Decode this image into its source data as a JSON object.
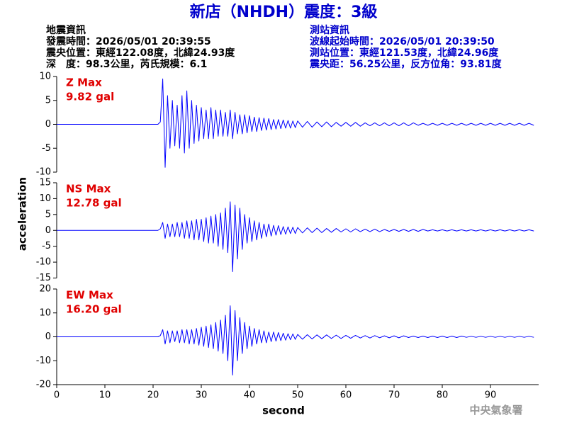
{
  "header": {
    "title": "新店（NHDH）震度：3級",
    "left": [
      "地震資訊",
      "發震時間：2026/05/01 20:39:55",
      "震央位置：東經122.08度，北緯24.93度",
      "深　度：98.3公里，芮氏規模：6.1"
    ],
    "right": [
      "測站資訊",
      "波線起始時間：2026/05/01 20:39:50",
      "測站位置：東經121.53度，北緯24.96度",
      "震央距：56.25公里，反方位角：93.81度"
    ]
  },
  "footer": "中央氣象署",
  "chart_data": [
    {
      "type": "line",
      "annotation": [
        "Z Max",
        "9.82 gal"
      ],
      "xlim": [
        0,
        100
      ],
      "ylim": [
        -10,
        10
      ],
      "yticks": [
        -10,
        -5,
        0,
        5,
        10
      ],
      "x": [
        0,
        21,
        21.5,
        22,
        22.5,
        23,
        23.5,
        24,
        24.5,
        25,
        25.5,
        26,
        26.5,
        27,
        27.5,
        28,
        28.5,
        29,
        29.5,
        30,
        30.5,
        31,
        31.5,
        32,
        32.5,
        33,
        33.5,
        34,
        34.5,
        35,
        35.5,
        36,
        36.5,
        37,
        37.5,
        38,
        38.5,
        39,
        39.5,
        40,
        40.5,
        41,
        41.5,
        42,
        42.5,
        43,
        43.5,
        44,
        44.5,
        45,
        45.5,
        46,
        46.5,
        47,
        47.5,
        48,
        48.5,
        49,
        49.5,
        50,
        51,
        52,
        53,
        54,
        55,
        56,
        57,
        58,
        59,
        60,
        61,
        62,
        63,
        64,
        65,
        66,
        67,
        68,
        69,
        70,
        71,
        72,
        73,
        74,
        75,
        76,
        77,
        78,
        79,
        80,
        81,
        82,
        83,
        84,
        85,
        86,
        87,
        88,
        89,
        90,
        91,
        92,
        93,
        94,
        95,
        96,
        97,
        98,
        99
      ],
      "series": [
        {
          "color": "#0000ff",
          "values": [
            0,
            0,
            0.5,
            9.5,
            -9,
            6,
            -5,
            5,
            -4.5,
            4,
            -5,
            6,
            -6,
            7,
            -5,
            5,
            -4,
            4,
            -3.5,
            3.5,
            -3,
            3,
            -3,
            3.5,
            -3,
            3,
            -2.5,
            3,
            -2.5,
            2.5,
            -2.5,
            3,
            -3,
            2.5,
            -2,
            2,
            -2,
            2,
            -1.8,
            1.8,
            -1.5,
            1.5,
            -1.5,
            1.4,
            -1.3,
            1.3,
            -1.2,
            1.2,
            -1.1,
            1,
            -1,
            1,
            -0.9,
            0.9,
            -0.8,
            0.8,
            -0.8,
            0.7,
            -0.7,
            0.7,
            -0.6,
            0.6,
            -0.6,
            0.5,
            -0.5,
            0.5,
            -0.5,
            0.4,
            -0.4,
            0.4,
            -0.4,
            0.4,
            -0.4,
            0.3,
            -0.3,
            0.3,
            -0.3,
            0.3,
            -0.3,
            0.3,
            -0.3,
            0.3,
            -0.3,
            0.3,
            -0.2,
            0.2,
            -0.2,
            0.2,
            -0.2,
            0.2,
            -0.2,
            0.2,
            -0.2,
            0.2,
            -0.2,
            0.2,
            -0.2,
            0.2,
            -0.2,
            0.2,
            -0.2,
            0.2,
            -0.2,
            0.2,
            -0.2,
            0.2,
            -0.2,
            0.2,
            -0.2
          ]
        }
      ]
    },
    {
      "type": "line",
      "annotation": [
        "NS Max",
        "12.78 gal"
      ],
      "ylabel": "acceleration",
      "xlim": [
        0,
        100
      ],
      "ylim": [
        -15,
        15
      ],
      "yticks": [
        -15,
        -10,
        -5,
        0,
        5,
        10,
        15
      ],
      "x": [
        0,
        21,
        21.5,
        22,
        22.5,
        23,
        23.5,
        24,
        24.5,
        25,
        25.5,
        26,
        26.5,
        27,
        27.5,
        28,
        28.5,
        29,
        29.5,
        30,
        30.5,
        31,
        31.5,
        32,
        32.5,
        33,
        33.5,
        34,
        34.5,
        35,
        35.5,
        36,
        36.5,
        37,
        37.5,
        38,
        38.5,
        39,
        39.5,
        40,
        40.5,
        41,
        41.5,
        42,
        42.5,
        43,
        43.5,
        44,
        44.5,
        45,
        45.5,
        46,
        46.5,
        47,
        47.5,
        48,
        48.5,
        49,
        49.5,
        50,
        51,
        52,
        53,
        54,
        55,
        56,
        57,
        58,
        59,
        60,
        61,
        62,
        63,
        64,
        65,
        66,
        67,
        68,
        69,
        70,
        71,
        72,
        73,
        74,
        75,
        76,
        77,
        78,
        79,
        80,
        81,
        82,
        83,
        84,
        85,
        86,
        87,
        88,
        89,
        90,
        91,
        92,
        93,
        94,
        95,
        96,
        97,
        98,
        99
      ],
      "series": [
        {
          "color": "#0000ff",
          "values": [
            0,
            0,
            0.5,
            2.5,
            -2.5,
            2,
            -2,
            2,
            -2,
            2.5,
            -2,
            2.5,
            -2.5,
            3,
            -2.5,
            3,
            -3,
            3.5,
            -3,
            3.5,
            -3.5,
            4,
            -4,
            4.5,
            -4,
            5,
            -5,
            5.5,
            -6,
            7,
            -7,
            9,
            -13,
            8,
            -9,
            7,
            -6,
            5,
            -4,
            4,
            -3.5,
            3,
            -3,
            2.5,
            -2.5,
            2,
            -2,
            2,
            -1.8,
            1.6,
            -1.5,
            1.5,
            -1.3,
            1.2,
            -1.2,
            1.1,
            -1,
            1,
            -1,
            0.9,
            -0.8,
            0.8,
            -0.7,
            0.7,
            -0.7,
            0.6,
            -0.6,
            0.6,
            -0.5,
            0.5,
            -0.5,
            0.5,
            -0.4,
            0.4,
            -0.4,
            0.4,
            -0.4,
            0.3,
            -0.3,
            0.3,
            -0.3,
            0.3,
            -0.3,
            0.3,
            -0.3,
            0.3,
            -0.2,
            0.2,
            -0.2,
            0.2,
            -0.2,
            0.2,
            -0.2,
            0.2,
            -0.2,
            0.2,
            -0.2,
            0.2,
            -0.2,
            0.2,
            -0.2,
            0.2,
            -0.2,
            0.2,
            -0.2,
            0.2,
            -0.2,
            0.2,
            -0.2
          ]
        }
      ]
    },
    {
      "type": "line",
      "annotation": [
        "EW Max",
        "16.20 gal"
      ],
      "xlabel": "second",
      "xlim": [
        0,
        100
      ],
      "xticks": [
        0,
        10,
        20,
        30,
        40,
        50,
        60,
        70,
        80,
        90
      ],
      "ylim": [
        -20,
        20
      ],
      "yticks": [
        -20,
        -10,
        0,
        10,
        20
      ],
      "x": [
        0,
        21,
        21.5,
        22,
        22.5,
        23,
        23.5,
        24,
        24.5,
        25,
        25.5,
        26,
        26.5,
        27,
        27.5,
        28,
        28.5,
        29,
        29.5,
        30,
        30.5,
        31,
        31.5,
        32,
        32.5,
        33,
        33.5,
        34,
        34.5,
        35,
        35.5,
        36,
        36.5,
        37,
        37.5,
        38,
        38.5,
        39,
        39.5,
        40,
        40.5,
        41,
        41.5,
        42,
        42.5,
        43,
        43.5,
        44,
        44.5,
        45,
        45.5,
        46,
        46.5,
        47,
        47.5,
        48,
        48.5,
        49,
        49.5,
        50,
        51,
        52,
        53,
        54,
        55,
        56,
        57,
        58,
        59,
        60,
        61,
        62,
        63,
        64,
        65,
        66,
        67,
        68,
        69,
        70,
        71,
        72,
        73,
        74,
        75,
        76,
        77,
        78,
        79,
        80,
        81,
        82,
        83,
        84,
        85,
        86,
        87,
        88,
        89,
        90,
        91,
        92,
        93,
        94,
        95,
        96,
        97,
        98,
        99
      ],
      "series": [
        {
          "color": "#0000ff",
          "values": [
            0,
            0,
            0.5,
            3,
            -3,
            2.5,
            -2.5,
            2.5,
            -2,
            2.5,
            -2.5,
            3,
            -2.5,
            3,
            -3,
            3,
            -3,
            3.5,
            -3.5,
            4,
            -4,
            4.5,
            -4.5,
            5,
            -5,
            6,
            -6,
            7,
            -7,
            9,
            -10,
            13,
            -16,
            11,
            -10,
            8,
            -7,
            6,
            -5,
            4.5,
            -4,
            3.5,
            -3,
            3,
            -2.5,
            2.5,
            -2.5,
            2,
            -2,
            2,
            -1.8,
            1.8,
            -1.6,
            1.5,
            -1.4,
            1.3,
            -1.2,
            1.2,
            -1.1,
            1,
            -1,
            0.9,
            -0.9,
            0.8,
            -0.8,
            0.8,
            -0.7,
            0.7,
            -0.7,
            0.6,
            -0.6,
            0.6,
            -0.5,
            0.5,
            -0.5,
            0.5,
            -0.4,
            0.4,
            -0.4,
            0.4,
            -0.4,
            0.4,
            -0.3,
            0.3,
            -0.3,
            0.3,
            -0.3,
            0.3,
            -0.3,
            0.3,
            -0.3,
            0.3,
            -0.3,
            0.3,
            -0.2,
            0.2,
            -0.2,
            0.2,
            -0.2,
            0.2,
            -0.2,
            0.2,
            -0.2,
            0.2,
            -0.2,
            0.2,
            -0.2,
            0.2,
            -0.2
          ]
        }
      ]
    }
  ]
}
